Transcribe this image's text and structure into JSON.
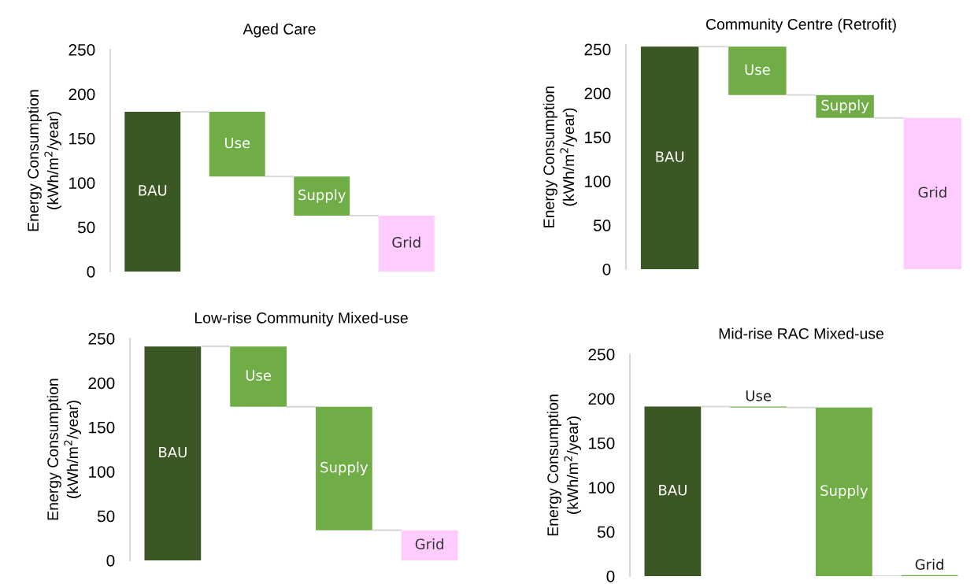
{
  "chart_data": [
    {
      "type": "bar",
      "title": "Aged Care",
      "ylabel": "Energy Consumption\n(kWh/m$^{2}$/year)",
      "categories": [
        "BAU",
        "Use",
        "Supply",
        "Grid"
      ],
      "values": [
        180,
        73,
        44,
        63
      ],
      "base": [
        0,
        107,
        63,
        0
      ],
      "colors": [
        "#3b5724",
        "#70ad47",
        "#70ad47",
        "#ffccff"
      ],
      "ylim": [
        0,
        250
      ],
      "yticks": [
        0,
        50,
        100,
        150,
        200,
        250
      ],
      "tick_labels": "y",
      "grid": false,
      "legend": false
    },
    {
      "type": "bar",
      "title": "Community Centre (Retrofit)",
      "ylabel": "Energy Consumption\n(kWh/m$^{2}$/year)",
      "categories": [
        "BAU",
        "Use",
        "Supply",
        "Grid"
      ],
      "values": [
        253,
        55,
        26,
        172
      ],
      "base": [
        0,
        198,
        172,
        0
      ],
      "colors": [
        "#3b5724",
        "#70ad47",
        "#70ad47",
        "#ffccff"
      ],
      "ylim": [
        0,
        255
      ],
      "yticks": [
        0,
        50,
        100,
        150,
        200,
        250
      ],
      "tick_labels": "y",
      "grid": false,
      "legend": false
    },
    {
      "type": "bar",
      "title": "Low-rise Community Mixed-use",
      "ylabel": "Energy Consumption\n(kWh/m$^{2}$/year)",
      "categories": [
        "BAU",
        "Use",
        "Supply",
        "Grid"
      ],
      "values": [
        241,
        68,
        139,
        34
      ],
      "base": [
        0,
        173,
        34,
        0
      ],
      "colors": [
        "#3b5724",
        "#70ad47",
        "#70ad47",
        "#ffccff"
      ],
      "ylim": [
        0,
        250
      ],
      "yticks": [
        0,
        50,
        100,
        150,
        200,
        250
      ],
      "tick_labels": "y",
      "grid": false,
      "legend": false
    },
    {
      "type": "bar",
      "title": "Mid-rise RAC Mixed-use",
      "ylabel": "Energy Consumption\n(kWh/m$^{2}$/year)",
      "categories": [
        "BAU",
        "Use",
        "Supply",
        "Grid"
      ],
      "values": [
        191,
        1,
        190,
        1
      ],
      "base": [
        0,
        190,
        0,
        0
      ],
      "colors": [
        "#3b5724",
        "#70ad47",
        "#70ad47",
        "#70ad47"
      ],
      "ylim": [
        0,
        250
      ],
      "yticks": [
        0,
        50,
        100,
        150,
        200,
        250
      ],
      "tick_labels": "y",
      "grid": false,
      "legend": false
    }
  ]
}
